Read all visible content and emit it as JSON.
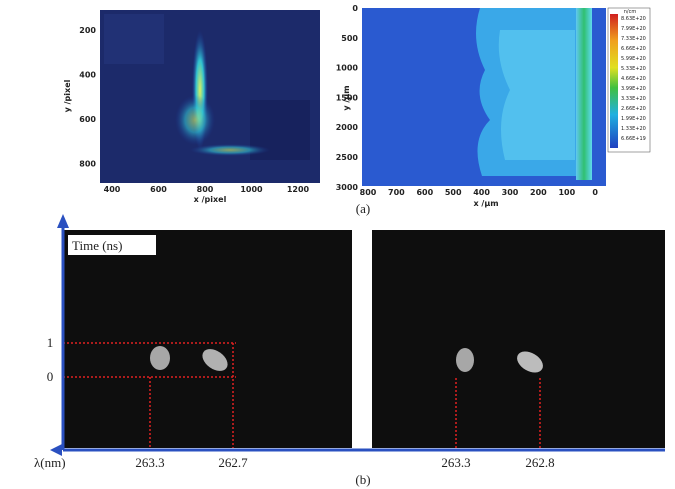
{
  "panel_a": {
    "label": "(a)",
    "left": {
      "y_label": "y /pixel",
      "x_label": "x /pixel",
      "y_ticks": [
        "200",
        "400",
        "600",
        "800"
      ],
      "x_ticks": [
        "400",
        "600",
        "800",
        "1000",
        "1200"
      ]
    },
    "right": {
      "y_label": "y /μm",
      "x_label": "x /μm",
      "y_ticks": [
        "0",
        "500",
        "1000",
        "1500",
        "2000",
        "2500",
        "3000"
      ],
      "x_ticks": [
        "800",
        "700",
        "600",
        "500",
        "400",
        "300",
        "200",
        "100",
        "0"
      ],
      "colorbar_title": "n/cm",
      "colorbar_labels": [
        "8.63E+20",
        "7.99E+20",
        "7.33E+20",
        "6.66E+20",
        "5.99E+20",
        "5.33E+20",
        "4.66E+20",
        "3.99E+20",
        "3.33E+20",
        "2.66E+20",
        "1.99E+20",
        "1.33E+20",
        "6.66E+19"
      ]
    }
  },
  "panel_b": {
    "label": "(b)",
    "y_axis_label": "Time (ns)",
    "y_marks": [
      "1",
      "0"
    ],
    "x_axis_label": "λ(nm)",
    "left_wavelengths": [
      "263.3",
      "262.7"
    ],
    "right_wavelengths": [
      "263.3",
      "262.8"
    ]
  }
}
